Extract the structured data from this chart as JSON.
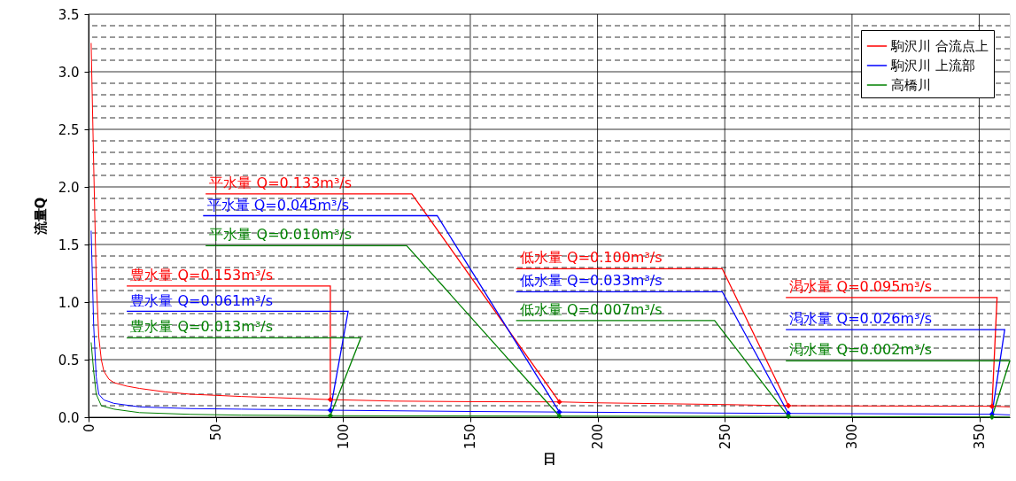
{
  "chart_data": {
    "type": "line",
    "xlabel": "日",
    "ylabel": "流量Q",
    "xlim": [
      0,
      362
    ],
    "xticks": [
      0,
      50,
      100,
      150,
      200,
      250,
      300,
      350
    ],
    "ylim": [
      0,
      3.5
    ],
    "yticks": [
      {
        "value": 0,
        "label": "0.0"
      },
      {
        "value": 0.1,
        "label": null
      },
      {
        "value": 0.2,
        "label": null
      },
      {
        "value": 0.3,
        "label": null
      },
      {
        "value": 0.4,
        "label": null
      },
      {
        "value": 0.5,
        "label": "0.5"
      },
      {
        "value": 0.6,
        "label": null
      },
      {
        "value": 0.7,
        "label": null
      },
      {
        "value": 0.8,
        "label": null
      },
      {
        "value": 0.9,
        "label": null
      },
      {
        "value": 1.0,
        "label": "1.0"
      },
      {
        "value": 1.1,
        "label": null
      },
      {
        "value": 1.2,
        "label": null
      },
      {
        "value": 1.3,
        "label": null
      },
      {
        "value": 1.4,
        "label": null
      },
      {
        "value": 1.5,
        "label": "1.5"
      },
      {
        "value": 1.6,
        "label": null
      },
      {
        "value": 1.7,
        "label": null
      },
      {
        "value": 1.8,
        "label": null
      },
      {
        "value": 1.9,
        "label": null
      },
      {
        "value": 2.0,
        "label": "2.0"
      },
      {
        "value": 2.1,
        "label": null
      },
      {
        "value": 2.2,
        "label": null
      },
      {
        "value": 2.3,
        "label": null
      },
      {
        "value": 2.4,
        "label": null
      },
      {
        "value": 2.5,
        "label": "2.5"
      },
      {
        "value": 2.6,
        "label": null
      },
      {
        "value": 2.7,
        "label": null
      },
      {
        "value": 2.8,
        "label": null
      },
      {
        "value": 2.9,
        "label": null
      },
      {
        "value": 3.0,
        "label": "3.0"
      },
      {
        "value": 3.1,
        "label": null
      },
      {
        "value": 3.2,
        "label": null
      },
      {
        "value": 3.3,
        "label": null
      },
      {
        "value": 3.4,
        "label": null
      },
      {
        "value": 3.5,
        "label": "3.5"
      }
    ],
    "grid": true,
    "legend": "top right",
    "marker": "none",
    "line_style": "solid",
    "series": [
      {
        "name": "駒沢川 合流点上",
        "color": "#ff0000",
        "x": [
          1,
          2,
          3,
          4,
          5,
          6,
          8,
          10,
          15,
          20,
          30,
          40,
          50,
          60,
          80,
          95,
          120,
          150,
          185,
          200,
          250,
          275,
          300,
          355,
          362
        ],
        "values": [
          3.25,
          2.2,
          1.2,
          0.7,
          0.5,
          0.4,
          0.33,
          0.3,
          0.27,
          0.25,
          0.22,
          0.2,
          0.19,
          0.18,
          0.165,
          0.153,
          0.14,
          0.135,
          0.133,
          0.125,
          0.11,
          0.1,
          0.098,
          0.095,
          0.09
        ]
      },
      {
        "name": "駒沢川 上流部",
        "color": "#0000ff",
        "x": [
          1,
          2,
          3,
          4,
          6,
          10,
          20,
          40,
          60,
          95,
          150,
          185,
          250,
          275,
          355,
          362
        ],
        "values": [
          1.62,
          0.8,
          0.35,
          0.2,
          0.15,
          0.12,
          0.09,
          0.075,
          0.07,
          0.061,
          0.05,
          0.045,
          0.036,
          0.033,
          0.026,
          0.02
        ]
      },
      {
        "name": "高橋川",
        "color": "#008000",
        "x": [
          1,
          2,
          3,
          5,
          10,
          20,
          40,
          60,
          95,
          185,
          275,
          355,
          362
        ],
        "values": [
          0.65,
          0.4,
          0.2,
          0.1,
          0.07,
          0.04,
          0.025,
          0.018,
          0.013,
          0.01,
          0.007,
          0.002,
          0.001
        ]
      }
    ],
    "annotations": [
      {
        "text": "豊水量 Q=0.153m³/s",
        "x": 95,
        "y": 0.153
      },
      {
        "text": "豊水量 Q=0.061m³/s",
        "x": 95,
        "y": 0.061
      },
      {
        "text": "豊水量 Q=0.013m³/s",
        "x": 95,
        "y": 0.013
      },
      {
        "text": "平水量 Q=0.133m³/s",
        "x": 185,
        "y": 0.133
      },
      {
        "text": "平水量 Q=0.045m³/s",
        "x": 185,
        "y": 0.045
      },
      {
        "text": "平水量 Q=0.010m³/s",
        "x": 185,
        "y": 0.01
      },
      {
        "text": "低水量 Q=0.100m³/s",
        "x": 275,
        "y": 0.1
      },
      {
        "text": "低水量 Q=0.033m³/s",
        "x": 275,
        "y": 0.033
      },
      {
        "text": "低水量 Q=0.007m³/s",
        "x": 275,
        "y": 0.007
      },
      {
        "text": "渇水量 Q=0.095m³/s",
        "x": 355,
        "y": 0.095
      },
      {
        "text": "渇水量 Q=0.026m³/s",
        "x": 355,
        "y": 0.026
      },
      {
        "text": "渇水量 Q=0.002m³/s",
        "x": 355,
        "y": 0.002
      }
    ]
  }
}
